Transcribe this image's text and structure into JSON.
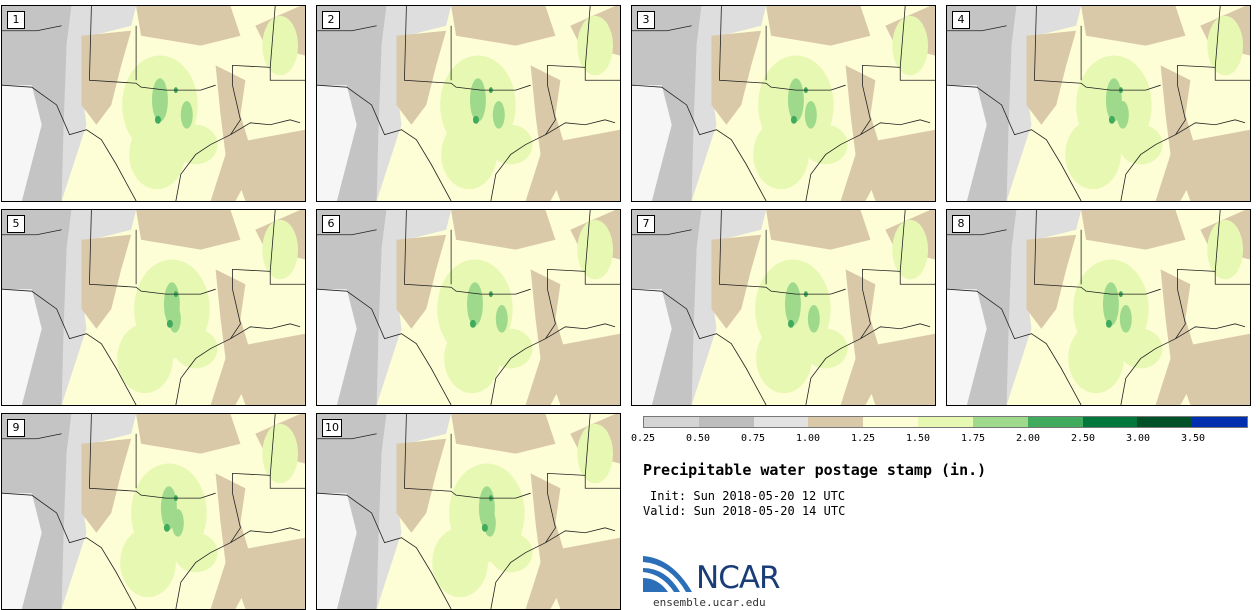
{
  "panels": [
    {
      "label": "1"
    },
    {
      "label": "2"
    },
    {
      "label": "3"
    },
    {
      "label": "4"
    },
    {
      "label": "5"
    },
    {
      "label": "6"
    },
    {
      "label": "7"
    },
    {
      "label": "8"
    },
    {
      "label": "9"
    },
    {
      "label": "10"
    }
  ],
  "colorbar": {
    "labels": [
      "0.25",
      "0.50",
      "0.75",
      "1.00",
      "1.25",
      "1.50",
      "1.75",
      "2.00",
      "2.50",
      "3.00",
      "3.50"
    ],
    "colors": [
      "#d4d4d4",
      "#bdbdbd",
      "#e2e2e2",
      "#dac9a8",
      "#fdfdd6",
      "#e6f8b2",
      "#9fd98b",
      "#41ab5d",
      "#00783c",
      "#005028",
      "#0030b0"
    ]
  },
  "title": "Precipitable water postage stamp (in.)",
  "init": "Init: Sun 2018-05-20 12 UTC",
  "valid": "Valid: Sun 2018-05-20 14 UTC",
  "logo": {
    "text": "NCAR"
  },
  "url": "ensemble.ucar.edu",
  "map_colors": {
    "gray_dark": "#c4c4c4",
    "gray_light": "#dedede",
    "tan": "#dac9a8",
    "yellow": "#fdfdd6",
    "light_green": "#e6f8b2",
    "green": "#9fd98b",
    "dark_green": "#41ab5d"
  }
}
